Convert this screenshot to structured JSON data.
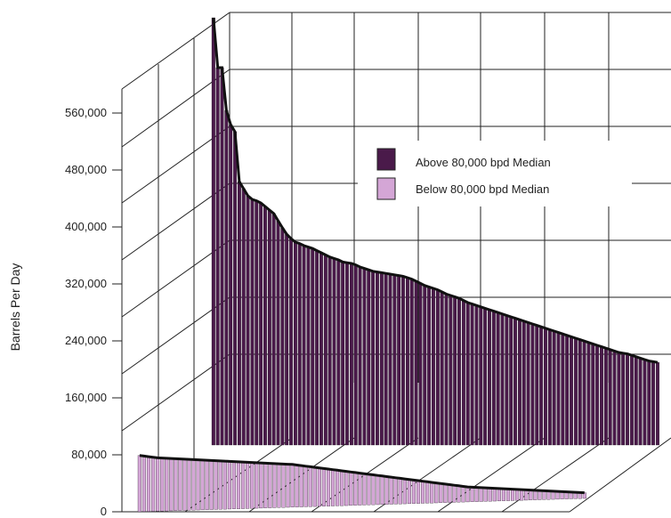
{
  "chart_data": {
    "type": "bar",
    "style": "3d-depth",
    "title": "",
    "xlabel": "",
    "ylabel": "Barrels Per Day",
    "ylim": [
      0,
      600000
    ],
    "y_ticks": [
      "0",
      "80,000",
      "160,000",
      "240,000",
      "320,000",
      "400,000",
      "480,000",
      "560,000"
    ],
    "grid": true,
    "legend_position": "right",
    "series": [
      {
        "name": "Above 80,000 bpd Median",
        "color": "#4a1a4a",
        "values": [
          600000,
          530000,
          530000,
          470000,
          450000,
          440000,
          370000,
          360000,
          350000,
          345000,
          343000,
          340000,
          335000,
          330000,
          325000,
          315000,
          305000,
          296000,
          290000,
          285000,
          283000,
          280000,
          278000,
          276000,
          273000,
          270000,
          267000,
          264000,
          262000,
          260000,
          257000,
          256000,
          255000,
          253000,
          250000,
          248000,
          246000,
          244000,
          243000,
          242000,
          241000,
          240000,
          239000,
          238000,
          237000,
          235000,
          233000,
          230000,
          227000,
          224000,
          222000,
          220000,
          218000,
          215000,
          212000,
          210000,
          208000,
          206000,
          203000,
          200000,
          198000,
          196000,
          194000,
          192000,
          190000,
          188000,
          186000,
          184000,
          182000,
          180000,
          178000,
          176000,
          174000,
          172000,
          170000,
          168000,
          166000,
          164000,
          162000,
          160000,
          158000,
          156000,
          154000,
          152000,
          150000,
          148000,
          146000,
          144000,
          142000,
          140000,
          138000,
          136000,
          134000,
          132000,
          130000,
          129000,
          128000,
          126000,
          124000,
          122000,
          120000,
          118000,
          117000,
          116000
        ]
      },
      {
        "name": "Below 80,000 bpd Median",
        "color": "#d4a6d6",
        "values": [
          79000,
          78000,
          77000,
          76000,
          75000,
          74500,
          74000,
          73500,
          73000,
          72500,
          72000,
          71500,
          71000,
          70500,
          70000,
          69500,
          69000,
          68500,
          68000,
          67500,
          67000,
          66500,
          66000,
          65500,
          65000,
          64500,
          64000,
          63500,
          63000,
          62500,
          62000,
          61500,
          61000,
          60500,
          60000,
          59000,
          58000,
          57000,
          56000,
          55000,
          54000,
          53000,
          52000,
          51000,
          50000,
          49000,
          48000,
          47000,
          46000,
          45000,
          44000,
          43000,
          42000,
          41000,
          40000,
          39000,
          38000,
          37000,
          36000,
          35000,
          34000,
          33000,
          32000,
          31000,
          30000,
          29000,
          28000,
          27000,
          26000,
          25000,
          24000,
          23000,
          22000,
          21000,
          20500,
          20000,
          19500,
          19000,
          18500,
          18000,
          17500,
          17000,
          16500,
          16000,
          15500,
          15000,
          14500,
          14000,
          13500,
          13000,
          12500,
          12000,
          11500,
          11000,
          10500,
          10000,
          9500,
          9000,
          8500,
          8000
        ]
      }
    ]
  }
}
